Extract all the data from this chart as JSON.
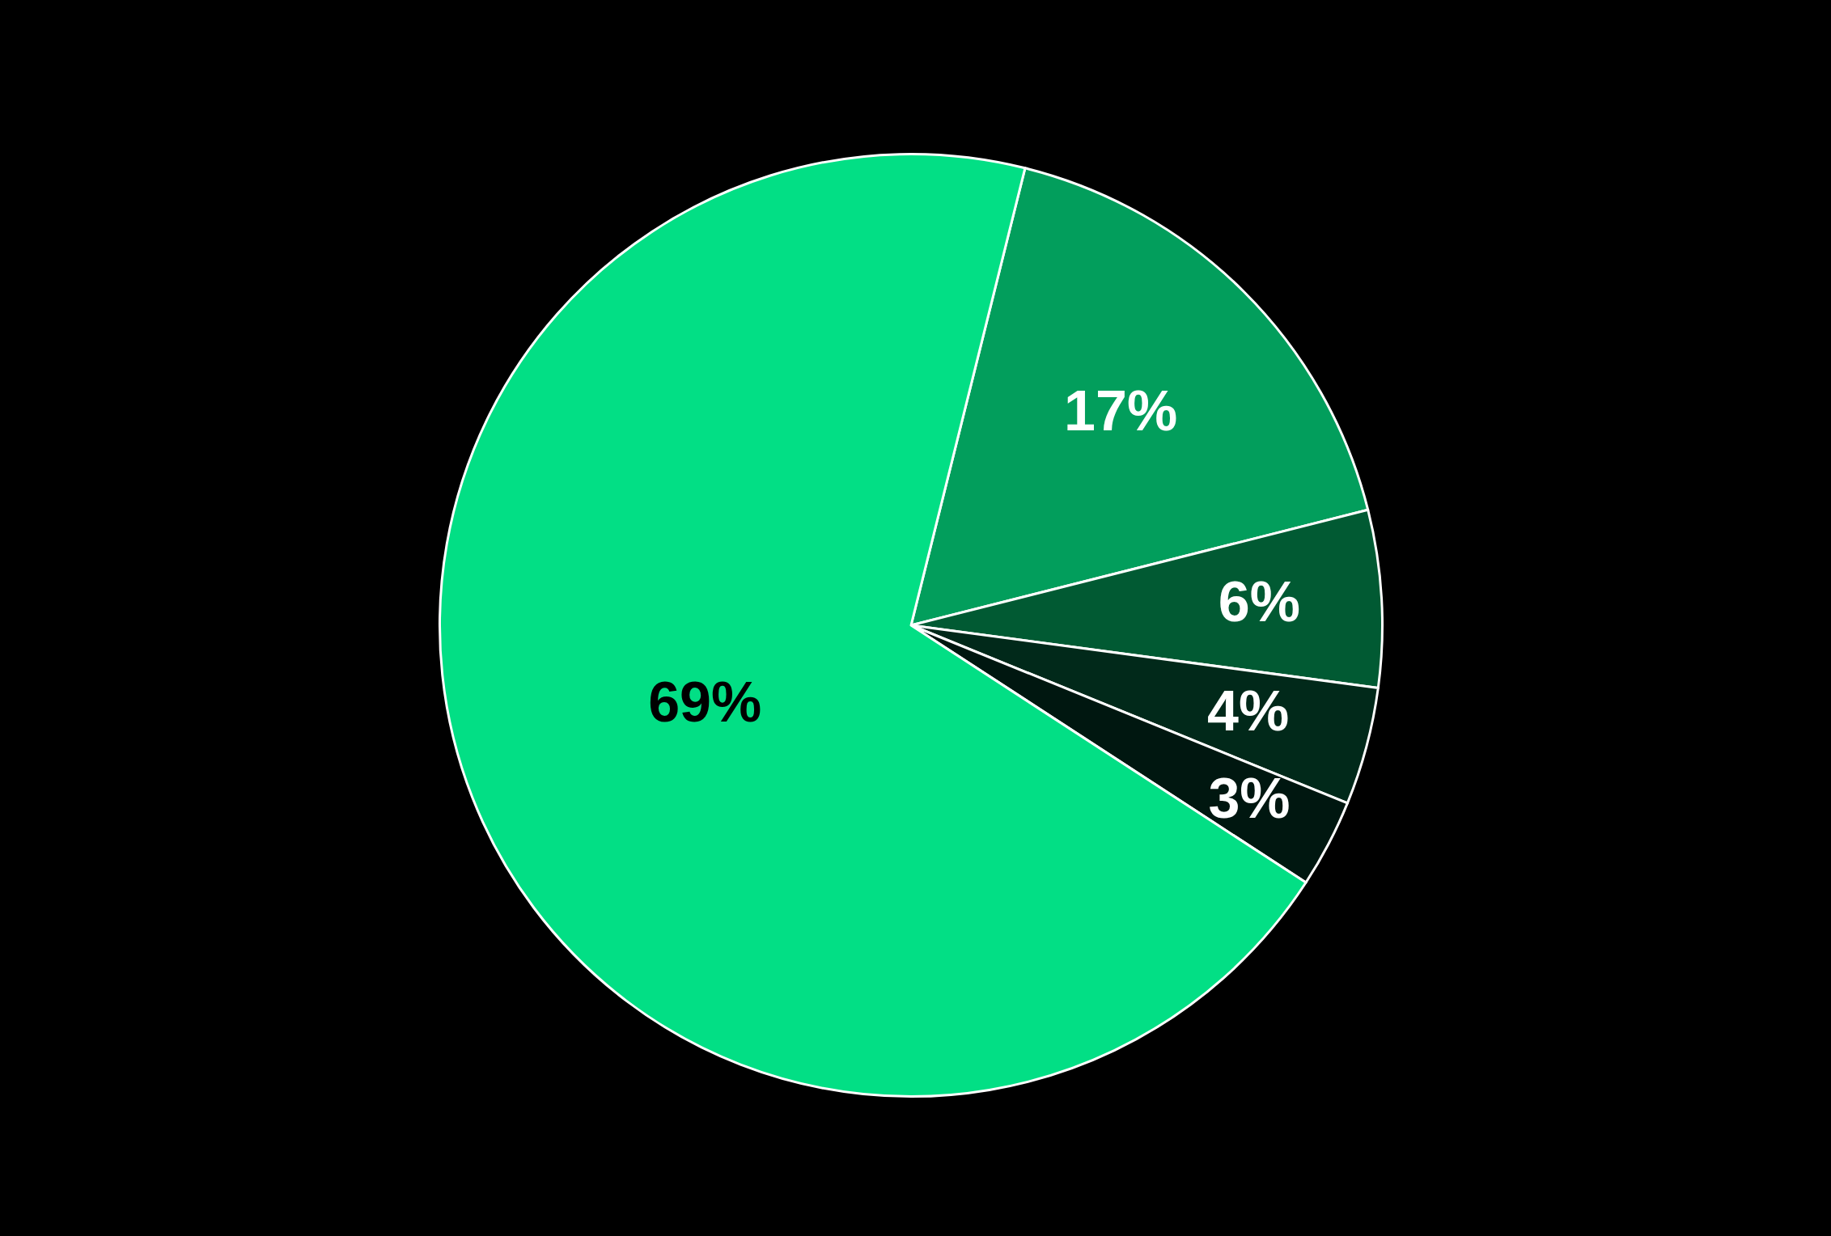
{
  "chart_data": {
    "type": "pie",
    "categories": [
      null,
      null,
      null,
      null,
      null
    ],
    "values": [
      17,
      6,
      4,
      3,
      69
    ],
    "value_labels": [
      "17%",
      "6%",
      "4%",
      "3%",
      "69%"
    ],
    "colors": [
      "#029e5c",
      "#015a33",
      "#01291a",
      "#001710",
      "#02df85"
    ],
    "legend": false
  }
}
